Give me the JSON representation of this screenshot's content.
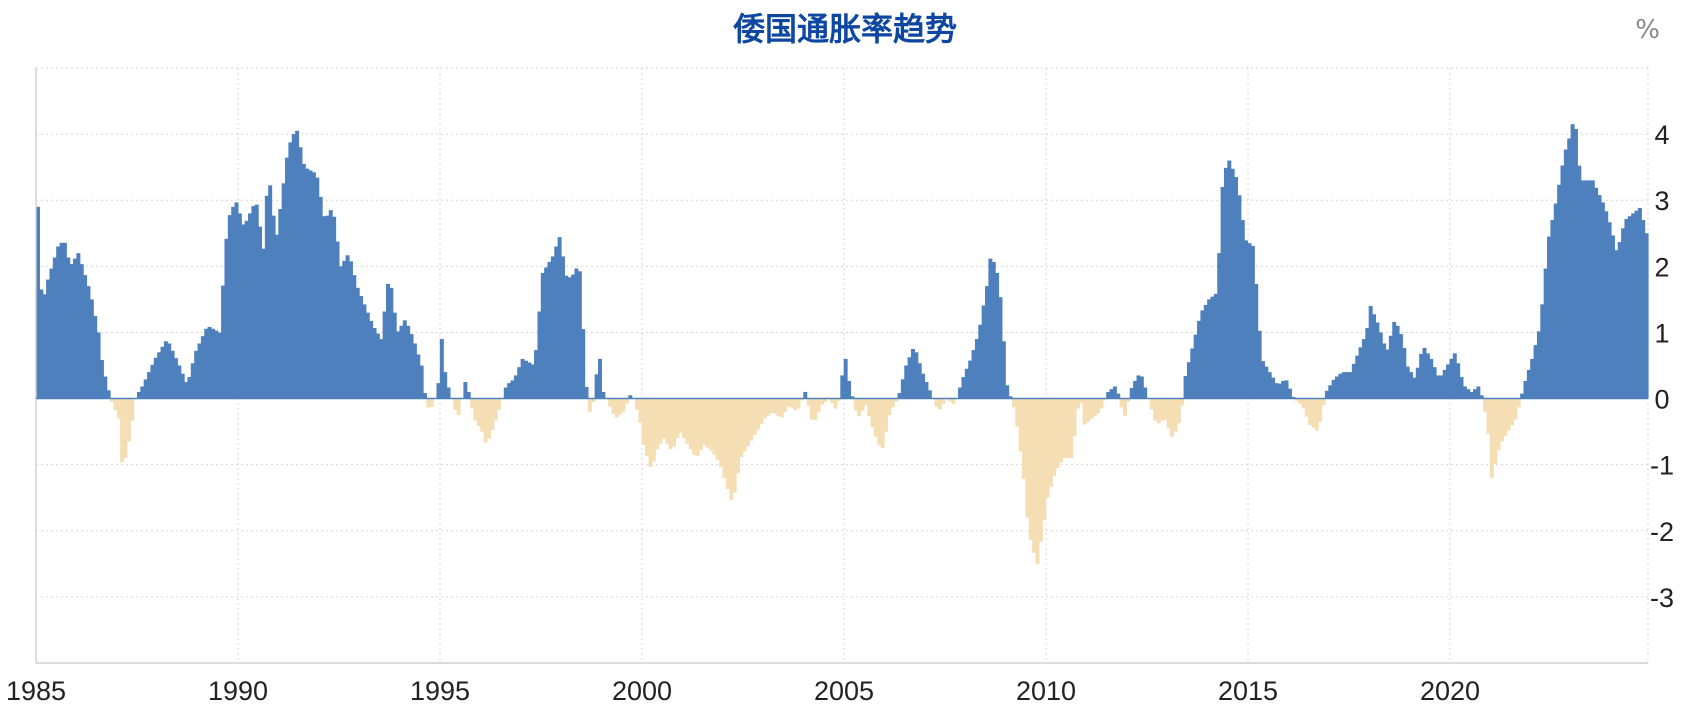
{
  "chart_data": {
    "type": "bar",
    "title": "倭国通胀率趋势",
    "unit": "%",
    "xlabel": "",
    "ylabel": "",
    "x_start": 1985,
    "x_end": 2024.9,
    "ylim": [
      -4,
      5
    ],
    "y_ticks": [
      -3,
      -2,
      -1,
      0,
      1,
      2,
      3,
      4
    ],
    "x_ticks": [
      1985,
      1990,
      1995,
      2000,
      2005,
      2010,
      2015,
      2020
    ],
    "grid": true,
    "y_axis_position": "right",
    "colors": {
      "positive": "#4e80bd",
      "negative": "#f5deb3",
      "title": "#0d47a1"
    },
    "keypoints": [
      [
        1985.0,
        2.9
      ],
      [
        1985.1,
        1.4
      ],
      [
        1985.25,
        1.8
      ],
      [
        1985.5,
        2.3
      ],
      [
        1985.65,
        2.4
      ],
      [
        1985.8,
        2.0
      ],
      [
        1986.0,
        2.2
      ],
      [
        1986.3,
        1.6
      ],
      [
        1986.5,
        1.0
      ],
      [
        1986.6,
        0.5
      ],
      [
        1986.8,
        0.0
      ],
      [
        1987.0,
        -0.3
      ],
      [
        1987.1,
        -1.1
      ],
      [
        1987.3,
        -0.5
      ],
      [
        1987.4,
        0.0
      ],
      [
        1987.6,
        0.2
      ],
      [
        1987.9,
        0.6
      ],
      [
        1988.2,
        0.9
      ],
      [
        1988.5,
        0.5
      ],
      [
        1988.7,
        0.2
      ],
      [
        1988.9,
        0.7
      ],
      [
        1989.2,
        1.1
      ],
      [
        1989.5,
        1.0
      ],
      [
        1989.7,
        2.7
      ],
      [
        1989.9,
        3.0
      ],
      [
        1990.1,
        2.6
      ],
      [
        1990.4,
        3.0
      ],
      [
        1990.6,
        2.2
      ],
      [
        1990.7,
        3.5
      ],
      [
        1990.9,
        2.4
      ],
      [
        1991.2,
        3.8
      ],
      [
        1991.4,
        4.1
      ],
      [
        1991.6,
        3.5
      ],
      [
        1991.9,
        3.4
      ],
      [
        1992.1,
        2.7
      ],
      [
        1992.3,
        2.9
      ],
      [
        1992.5,
        2.0
      ],
      [
        1992.7,
        2.2
      ],
      [
        1992.9,
        1.7
      ],
      [
        1993.1,
        1.4
      ],
      [
        1993.3,
        1.1
      ],
      [
        1993.5,
        0.9
      ],
      [
        1993.7,
        1.9
      ],
      [
        1993.9,
        1.0
      ],
      [
        1994.1,
        1.2
      ],
      [
        1994.3,
        0.9
      ],
      [
        1994.5,
        0.5
      ],
      [
        1994.6,
        0.0
      ],
      [
        1994.7,
        -0.2
      ],
      [
        1994.9,
        0.1
      ],
      [
        1995.0,
        0.9
      ],
      [
        1995.1,
        0.3
      ],
      [
        1995.3,
        -0.1
      ],
      [
        1995.4,
        -0.3
      ],
      [
        1995.6,
        0.3
      ],
      [
        1995.8,
        -0.3
      ],
      [
        1996.0,
        -0.5
      ],
      [
        1996.1,
        -0.7
      ],
      [
        1996.3,
        -0.4
      ],
      [
        1996.5,
        0.0
      ],
      [
        1996.6,
        0.2
      ],
      [
        1996.8,
        0.3
      ],
      [
        1997.0,
        0.6
      ],
      [
        1997.3,
        0.5
      ],
      [
        1997.5,
        1.9
      ],
      [
        1997.8,
        2.2
      ],
      [
        1997.9,
        2.5
      ],
      [
        1998.1,
        1.8
      ],
      [
        1998.3,
        1.9
      ],
      [
        1998.4,
        2.1
      ],
      [
        1998.6,
        0.0
      ],
      [
        1998.7,
        -0.3
      ],
      [
        1998.9,
        0.7
      ],
      [
        1999.0,
        0.1
      ],
      [
        1999.3,
        -0.3
      ],
      [
        1999.5,
        -0.2
      ],
      [
        1999.7,
        0.1
      ],
      [
        1999.9,
        -0.3
      ],
      [
        2000.0,
        -0.7
      ],
      [
        2000.2,
        -1.1
      ],
      [
        2000.3,
        -0.8
      ],
      [
        2000.5,
        -0.6
      ],
      [
        2000.7,
        -0.8
      ],
      [
        2000.9,
        -0.5
      ],
      [
        2001.1,
        -0.7
      ],
      [
        2001.3,
        -0.9
      ],
      [
        2001.5,
        -0.7
      ],
      [
        2001.7,
        -0.8
      ],
      [
        2001.9,
        -1.0
      ],
      [
        2002.1,
        -1.4
      ],
      [
        2002.2,
        -1.6
      ],
      [
        2002.4,
        -0.9
      ],
      [
        2002.6,
        -0.7
      ],
      [
        2002.8,
        -0.5
      ],
      [
        2003.0,
        -0.3
      ],
      [
        2003.2,
        -0.2
      ],
      [
        2003.4,
        -0.3
      ],
      [
        2003.6,
        -0.1
      ],
      [
        2003.8,
        -0.2
      ],
      [
        2004.0,
        0.1
      ],
      [
        2004.2,
        -0.4
      ],
      [
        2004.4,
        -0.1
      ],
      [
        2004.6,
        0.0
      ],
      [
        2004.8,
        -0.2
      ],
      [
        2004.9,
        0.3
      ],
      [
        2005.0,
        0.6
      ],
      [
        2005.1,
        0.2
      ],
      [
        2005.3,
        -0.3
      ],
      [
        2005.5,
        -0.1
      ],
      [
        2005.7,
        -0.5
      ],
      [
        2005.9,
        -0.8
      ],
      [
        2006.1,
        -0.2
      ],
      [
        2006.3,
        0.0
      ],
      [
        2006.5,
        0.5
      ],
      [
        2006.7,
        0.8
      ],
      [
        2006.9,
        0.4
      ],
      [
        2007.1,
        0.1
      ],
      [
        2007.3,
        -0.2
      ],
      [
        2007.5,
        0.0
      ],
      [
        2007.7,
        -0.1
      ],
      [
        2007.9,
        0.3
      ],
      [
        2008.1,
        0.6
      ],
      [
        2008.3,
        1.0
      ],
      [
        2008.5,
        1.7
      ],
      [
        2008.6,
        2.2
      ],
      [
        2008.8,
        1.8
      ],
      [
        2008.9,
        1.0
      ],
      [
        2009.0,
        0.2
      ],
      [
        2009.2,
        -0.2
      ],
      [
        2009.4,
        -1.1
      ],
      [
        2009.5,
        -1.8
      ],
      [
        2009.6,
        -2.2
      ],
      [
        2009.75,
        -2.5
      ],
      [
        2009.9,
        -1.9
      ],
      [
        2010.0,
        -1.5
      ],
      [
        2010.2,
        -1.1
      ],
      [
        2010.4,
        -0.9
      ],
      [
        2010.6,
        -0.9
      ],
      [
        2010.8,
        0.1
      ],
      [
        2010.9,
        -0.4
      ],
      [
        2011.1,
        -0.3
      ],
      [
        2011.3,
        -0.2
      ],
      [
        2011.5,
        0.1
      ],
      [
        2011.7,
        0.2
      ],
      [
        2011.9,
        -0.3
      ],
      [
        2012.1,
        0.2
      ],
      [
        2012.3,
        0.4
      ],
      [
        2012.5,
        0.0
      ],
      [
        2012.7,
        -0.4
      ],
      [
        2012.9,
        -0.3
      ],
      [
        2013.1,
        -0.6
      ],
      [
        2013.3,
        -0.3
      ],
      [
        2013.4,
        0.3
      ],
      [
        2013.6,
        0.8
      ],
      [
        2013.8,
        1.3
      ],
      [
        2014.0,
        1.5
      ],
      [
        2014.2,
        1.6
      ],
      [
        2014.35,
        3.4
      ],
      [
        2014.5,
        3.6
      ],
      [
        2014.7,
        3.3
      ],
      [
        2014.9,
        2.4
      ],
      [
        2015.1,
        2.3
      ],
      [
        2015.3,
        0.6
      ],
      [
        2015.5,
        0.4
      ],
      [
        2015.7,
        0.2
      ],
      [
        2015.9,
        0.3
      ],
      [
        2016.1,
        0.0
      ],
      [
        2016.3,
        -0.1
      ],
      [
        2016.5,
        -0.4
      ],
      [
        2016.7,
        -0.5
      ],
      [
        2016.9,
        0.1
      ],
      [
        2017.1,
        0.3
      ],
      [
        2017.3,
        0.4
      ],
      [
        2017.5,
        0.4
      ],
      [
        2017.7,
        0.7
      ],
      [
        2017.9,
        1.0
      ],
      [
        2018.0,
        1.4
      ],
      [
        2018.2,
        1.1
      ],
      [
        2018.4,
        0.7
      ],
      [
        2018.6,
        1.2
      ],
      [
        2018.8,
        0.9
      ],
      [
        2018.9,
        0.5
      ],
      [
        2019.1,
        0.3
      ],
      [
        2019.3,
        0.8
      ],
      [
        2019.5,
        0.6
      ],
      [
        2019.7,
        0.3
      ],
      [
        2019.9,
        0.5
      ],
      [
        2020.1,
        0.7
      ],
      [
        2020.3,
        0.2
      ],
      [
        2020.5,
        0.1
      ],
      [
        2020.7,
        0.2
      ],
      [
        2020.9,
        -0.4
      ],
      [
        2021.0,
        -1.2
      ],
      [
        2021.2,
        -0.7
      ],
      [
        2021.4,
        -0.5
      ],
      [
        2021.6,
        -0.3
      ],
      [
        2021.8,
        0.2
      ],
      [
        2022.0,
        0.6
      ],
      [
        2022.2,
        1.1
      ],
      [
        2022.4,
        2.4
      ],
      [
        2022.6,
        3.0
      ],
      [
        2022.8,
        3.7
      ],
      [
        2022.95,
        4.0
      ],
      [
        2023.05,
        4.3
      ],
      [
        2023.2,
        3.3
      ],
      [
        2023.5,
        3.3
      ],
      [
        2023.8,
        2.9
      ],
      [
        2023.95,
        2.6
      ],
      [
        2024.1,
        2.2
      ],
      [
        2024.3,
        2.7
      ],
      [
        2024.5,
        2.8
      ],
      [
        2024.7,
        2.9
      ],
      [
        2024.8,
        2.5
      ]
    ]
  }
}
